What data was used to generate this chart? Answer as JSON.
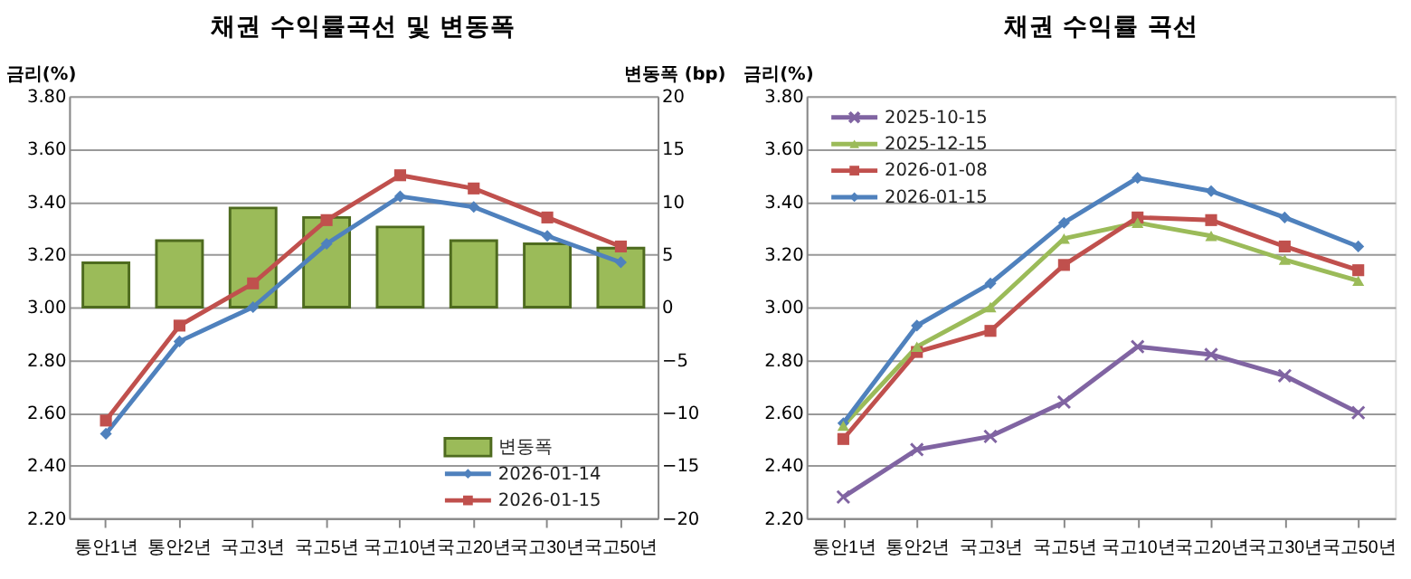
{
  "chart_data": [
    {
      "type": "line",
      "title": "채권 수익률곡선 및 변동폭",
      "ylabel": "금리(%)",
      "y2label": "변동폭 (bp)",
      "categories": [
        "통안1년",
        "통안2년",
        "국고3년",
        "국고5년",
        "국고10년",
        "국고20년",
        "국고30년",
        "국고50년"
      ],
      "series": [
        {
          "name": "변동폭",
          "type": "bar",
          "axis": "y2",
          "color": "#9bbb59",
          "values": [
            4.2,
            6.3,
            9.4,
            8.5,
            7.6,
            6.3,
            6.0,
            5.6
          ]
        },
        {
          "name": "2026-01-14",
          "color": "#4f81bd",
          "marker": "diamond",
          "values": [
            2.52,
            2.87,
            3.0,
            3.24,
            3.42,
            3.38,
            3.27,
            3.17
          ]
        },
        {
          "name": "2026-01-15",
          "color": "#c0504d",
          "marker": "square",
          "values": [
            2.57,
            2.93,
            3.09,
            3.33,
            3.5,
            3.45,
            3.34,
            3.23
          ]
        }
      ],
      "ylim": [
        2.2,
        3.8
      ],
      "yticks": [
        {
          "value": 2.2,
          "label": "2.20"
        },
        {
          "value": 2.4,
          "label": "2.40"
        },
        {
          "value": 2.6,
          "label": "2.60"
        },
        {
          "value": 2.8,
          "label": "2.80"
        },
        {
          "value": 3.0,
          "label": "3.00"
        },
        {
          "value": 3.2,
          "label": "3.20"
        },
        {
          "value": 3.4,
          "label": "3.40"
        },
        {
          "value": 3.6,
          "label": "3.60"
        },
        {
          "value": 3.8,
          "label": "3.80"
        }
      ],
      "y2lim": [
        -20,
        20
      ],
      "y2ticks": [
        -20,
        -15,
        -10,
        -5,
        0,
        5,
        10,
        15,
        20
      ],
      "grid": "y",
      "legend": "bottom right",
      "line_style": "solid"
    },
    {
      "type": "line",
      "title": "채권 수익률 곡선",
      "ylabel": "금리(%)",
      "categories": [
        "통안1년",
        "통안2년",
        "국고3년",
        "국고5년",
        "국고10년",
        "국고20년",
        "국고30년",
        "국고50년"
      ],
      "series": [
        {
          "name": "2025-10-15",
          "color": "#8064a2",
          "marker": "cross",
          "values": [
            2.28,
            2.46,
            2.51,
            2.64,
            2.85,
            2.82,
            2.74,
            2.6
          ]
        },
        {
          "name": "2025-12-15",
          "color": "#9bbb59",
          "marker": "triangle",
          "values": [
            2.55,
            2.85,
            3.0,
            3.26,
            3.32,
            3.27,
            3.18,
            3.1
          ]
        },
        {
          "name": "2026-01-08",
          "color": "#c0504d",
          "marker": "square",
          "values": [
            2.5,
            2.83,
            2.91,
            3.16,
            3.34,
            3.33,
            3.23,
            3.14
          ]
        },
        {
          "name": "2026-01-15",
          "color": "#4f81bd",
          "marker": "diamond",
          "values": [
            2.56,
            2.93,
            3.09,
            3.32,
            3.49,
            3.44,
            3.34,
            3.23
          ]
        }
      ],
      "ylim": [
        2.2,
        3.8
      ],
      "yticks": [
        {
          "value": 2.2,
          "label": "2.20"
        },
        {
          "value": 2.4,
          "label": "2.40"
        },
        {
          "value": 2.6,
          "label": "2.60"
        },
        {
          "value": 2.8,
          "label": "2.80"
        },
        {
          "value": 3.0,
          "label": "3.00"
        },
        {
          "value": 3.2,
          "label": "3.20"
        },
        {
          "value": 3.4,
          "label": "3.40"
        },
        {
          "value": 3.6,
          "label": "3.60"
        },
        {
          "value": 3.8,
          "label": "3.80"
        }
      ],
      "grid": "y",
      "legend": "top left",
      "line_style": "solid"
    }
  ]
}
